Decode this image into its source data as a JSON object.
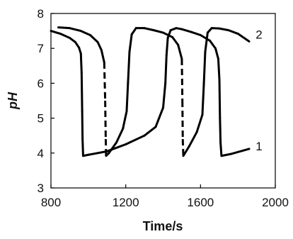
{
  "chart_data": {
    "type": "line",
    "title": "",
    "xlabel": "Time/s",
    "ylabel": "pH",
    "xlim": [
      800,
      2000
    ],
    "ylim": [
      3,
      8
    ],
    "x_ticks": [
      800,
      1200,
      1600,
      2000
    ],
    "y_ticks": [
      3,
      4,
      5,
      6,
      7,
      8
    ],
    "grid": false,
    "legend": "inline labels at right",
    "series": [
      {
        "name": "1",
        "line_style": "solid",
        "color": "#000000",
        "label_at": [
          1895,
          4.2
        ],
        "points": [
          [
            800,
            7.5
          ],
          [
            850,
            7.42
          ],
          [
            900,
            7.3
          ],
          [
            930,
            7.18
          ],
          [
            950,
            7.02
          ],
          [
            960,
            6.85
          ],
          [
            964,
            6.3
          ],
          [
            967,
            5.2
          ],
          [
            969,
            4.4
          ],
          [
            972,
            3.92
          ],
          [
            1000,
            3.95
          ],
          [
            1100,
            4.05
          ],
          [
            1200,
            4.25
          ],
          [
            1300,
            4.5
          ],
          [
            1360,
            4.75
          ],
          [
            1400,
            5.3
          ],
          [
            1412,
            6.0
          ],
          [
            1418,
            6.8
          ],
          [
            1425,
            7.3
          ],
          [
            1440,
            7.52
          ],
          [
            1470,
            7.58
          ],
          [
            1500,
            7.55
          ],
          [
            1550,
            7.47
          ],
          [
            1600,
            7.38
          ],
          [
            1650,
            7.22
          ],
          [
            1680,
            7.0
          ],
          [
            1695,
            6.7
          ],
          [
            1701,
            6.1
          ],
          [
            1704,
            5.0
          ],
          [
            1707,
            4.3
          ],
          [
            1712,
            3.92
          ],
          [
            1760,
            3.97
          ],
          [
            1860,
            4.12
          ]
        ]
      },
      {
        "name": "2",
        "line_style": "dashed",
        "color": "#000000",
        "label_at": [
          1895,
          7.4
        ],
        "points": [
          [
            840,
            7.6
          ],
          [
            900,
            7.58
          ],
          [
            960,
            7.5
          ],
          [
            1010,
            7.38
          ],
          [
            1050,
            7.18
          ],
          [
            1070,
            6.95
          ],
          [
            1085,
            6.6
          ],
          [
            1090,
            5.5
          ],
          [
            1093,
            4.4
          ],
          [
            1095,
            3.92
          ],
          [
            1110,
            4.0
          ],
          [
            1150,
            4.3
          ],
          [
            1185,
            4.7
          ],
          [
            1205,
            5.2
          ],
          [
            1212,
            6.0
          ],
          [
            1220,
            6.9
          ],
          [
            1232,
            7.4
          ],
          [
            1255,
            7.58
          ],
          [
            1300,
            7.58
          ],
          [
            1350,
            7.52
          ],
          [
            1400,
            7.45
          ],
          [
            1450,
            7.32
          ],
          [
            1480,
            7.1
          ],
          [
            1500,
            6.7
          ],
          [
            1503,
            5.5
          ],
          [
            1505,
            4.4
          ],
          [
            1508,
            3.92
          ],
          [
            1540,
            4.2
          ],
          [
            1580,
            4.6
          ],
          [
            1610,
            5.1
          ],
          [
            1618,
            6.0
          ],
          [
            1625,
            6.9
          ],
          [
            1638,
            7.45
          ],
          [
            1660,
            7.58
          ],
          [
            1700,
            7.57
          ],
          [
            1750,
            7.52
          ],
          [
            1800,
            7.42
          ],
          [
            1860,
            7.2
          ]
        ]
      }
    ]
  }
}
